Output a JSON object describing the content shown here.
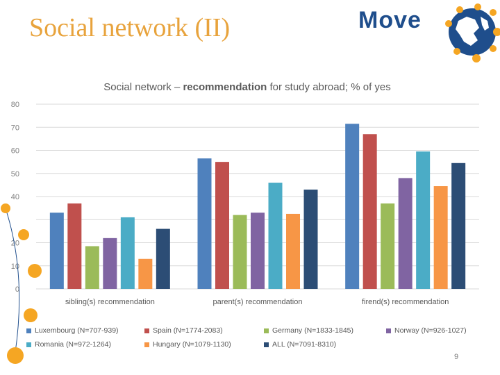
{
  "slide": {
    "title": "Social network (II)",
    "logo_text": "Move",
    "page_number": "9"
  },
  "colors": {
    "title": "#e8a33c",
    "accent_dots": "#f5a623",
    "logo_blue": "#1f4e8c"
  },
  "chart_data": {
    "type": "bar",
    "title_prefix": "Social network – ",
    "title_bold": "recommendation",
    "title_suffix": " for study abroad; % of yes",
    "categories": [
      "sibling(s) recommendation",
      "parent(s) recommendation",
      "firend(s) recommendation"
    ],
    "ylim": [
      0,
      80
    ],
    "yticks": [
      0,
      10,
      20,
      30,
      40,
      50,
      60,
      70,
      80
    ],
    "ytick_labels": [
      "0",
      "10",
      "20",
      "",
      "40",
      "50",
      "60",
      "70",
      "80"
    ],
    "grid": true,
    "legend_position": "bottom",
    "series": [
      {
        "name": "Luxembourg (N=707-939)",
        "color": "#4f81bd",
        "values": [
          33,
          56.5,
          71.5
        ]
      },
      {
        "name": "Spain (N=1774-2083)",
        "color": "#c0504d",
        "values": [
          37,
          55,
          67
        ]
      },
      {
        "name": "Germany (N=1833-1845)",
        "color": "#9bbb59",
        "values": [
          18.5,
          32,
          37
        ]
      },
      {
        "name": "Norway (N=926-1027)",
        "color": "#8064a2",
        "values": [
          22,
          33,
          48
        ]
      },
      {
        "name": "Romania (N=972-1264)",
        "color": "#4bacc6",
        "values": [
          31,
          46,
          59.5
        ]
      },
      {
        "name": "Hungary (N=1079-1130)",
        "color": "#f79646",
        "values": [
          13,
          32.5,
          44.5
        ]
      },
      {
        "name": "ALL (N=7091-8310)",
        "color": "#2c4d75",
        "values": [
          26,
          43,
          54.5
        ]
      }
    ]
  }
}
